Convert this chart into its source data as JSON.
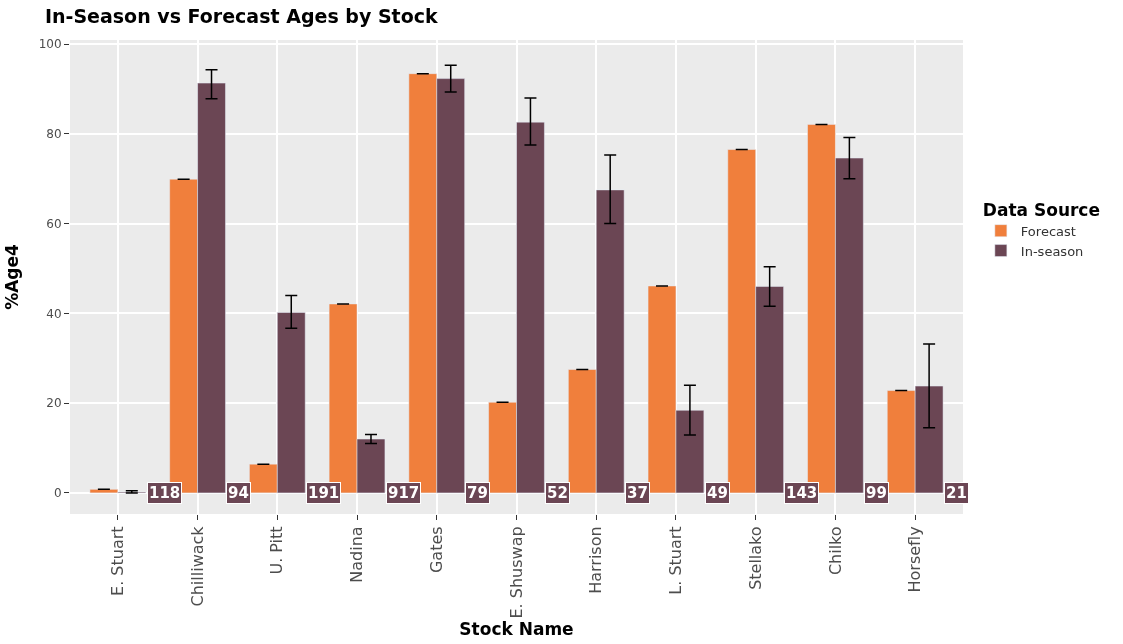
{
  "chart_data": {
    "type": "bar",
    "title": "In-Season vs Forecast Ages by Stock",
    "xlabel": "Stock Name",
    "ylabel": "%Age4",
    "legend_title": "Data Source",
    "categories": [
      "E. Stuart",
      "Chilliwack",
      "U. Pitt",
      "Nadina",
      "Gates",
      "E. Shuswap",
      "Harrison",
      "L. Stuart",
      "Stellako",
      "Chilko",
      "Horsefly"
    ],
    "series": [
      {
        "name": "Forecast",
        "color": "#f07f3c",
        "values": [
          0.8,
          69.9,
          6.4,
          42.1,
          93.4,
          20.2,
          27.5,
          46.1,
          76.5,
          82.1,
          22.8
        ],
        "errors": [
          0,
          0,
          0,
          0,
          0,
          0,
          0,
          0,
          0,
          0,
          0
        ]
      },
      {
        "name": "In-season",
        "color": "#6b4654",
        "values": [
          0.2,
          91.3,
          40.2,
          12,
          92.3,
          82.6,
          67.5,
          18.4,
          46,
          74.6,
          23.8
        ],
        "errors": [
          [
            0,
            0.5
          ],
          [
            87.8,
            94.3
          ],
          [
            36.7,
            44
          ],
          [
            11,
            13
          ],
          [
            89.3,
            95.3
          ],
          [
            77.5,
            88
          ],
          [
            60,
            75.3
          ],
          [
            12.9,
            24
          ],
          [
            41.6,
            50.4
          ],
          [
            70,
            79.2
          ],
          [
            14.5,
            33.2
          ]
        ]
      }
    ],
    "annotations": [
      {
        "text": "118",
        "x": "E. Stuart",
        "y": 0
      },
      {
        "text": "94",
        "x": "Chilliwack",
        "y": 0
      },
      {
        "text": "191",
        "x": "U. Pitt",
        "y": 0
      },
      {
        "text": "917",
        "x": "Nadina",
        "y": 0
      },
      {
        "text": "79",
        "x": "Gates",
        "y": 0
      },
      {
        "text": "52",
        "x": "E. Shuswap",
        "y": 0
      },
      {
        "text": "37",
        "x": "Harrison",
        "y": 0
      },
      {
        "text": "49",
        "x": "L. Stuart",
        "y": 0
      },
      {
        "text": "143",
        "x": "Stellako",
        "y": 0
      },
      {
        "text": "99",
        "x": "Chilko",
        "y": 0
      },
      {
        "text": "21",
        "x": "Horsefly",
        "y": 0
      }
    ],
    "ylim": [
      -4.7,
      100.9
    ],
    "yticks": [
      0,
      20,
      40,
      60,
      80,
      100
    ],
    "grid": true,
    "legend": "right"
  }
}
